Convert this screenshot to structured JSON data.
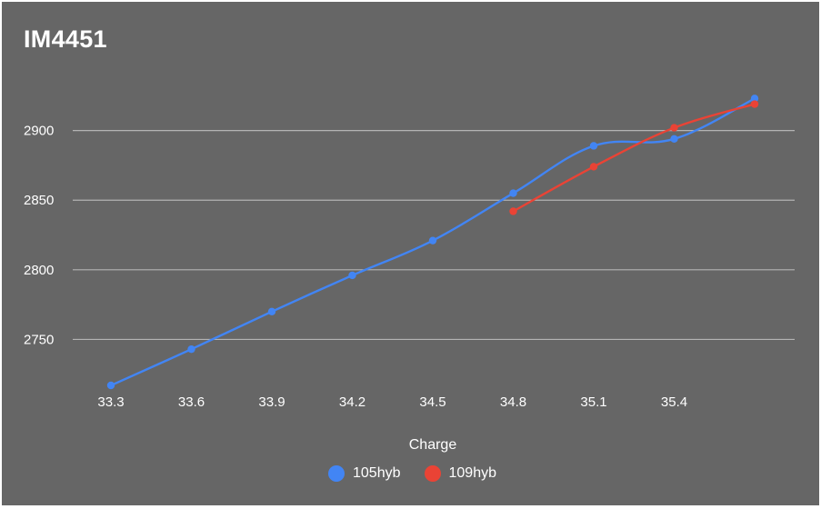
{
  "chart_data": {
    "type": "line",
    "title": "IM4451",
    "xlabel": "Charge",
    "ylabel": "",
    "x_ticks": [
      "33.3",
      "33.6",
      "33.9",
      "34.2",
      "34.5",
      "34.8",
      "35.1",
      "35.4"
    ],
    "y_ticks": [
      "2750",
      "2800",
      "2850",
      "2900"
    ],
    "xlim": [
      33.3,
      35.7
    ],
    "ylim": [
      2717,
      2935
    ],
    "grid": true,
    "legend_position": "bottom",
    "series": [
      {
        "name": "105hyb",
        "color": "#4285f4",
        "x": [
          33.3,
          33.6,
          33.9,
          34.2,
          34.5,
          34.8,
          35.1,
          35.4,
          35.7
        ],
        "y": [
          2717,
          2743,
          2770,
          2796,
          2821,
          2855,
          2889,
          2894,
          2923
        ]
      },
      {
        "name": "109hyb",
        "color": "#ea4335",
        "x": [
          34.8,
          35.1,
          35.4,
          35.7
        ],
        "y": [
          2842,
          2874,
          2902,
          2919
        ]
      }
    ]
  }
}
